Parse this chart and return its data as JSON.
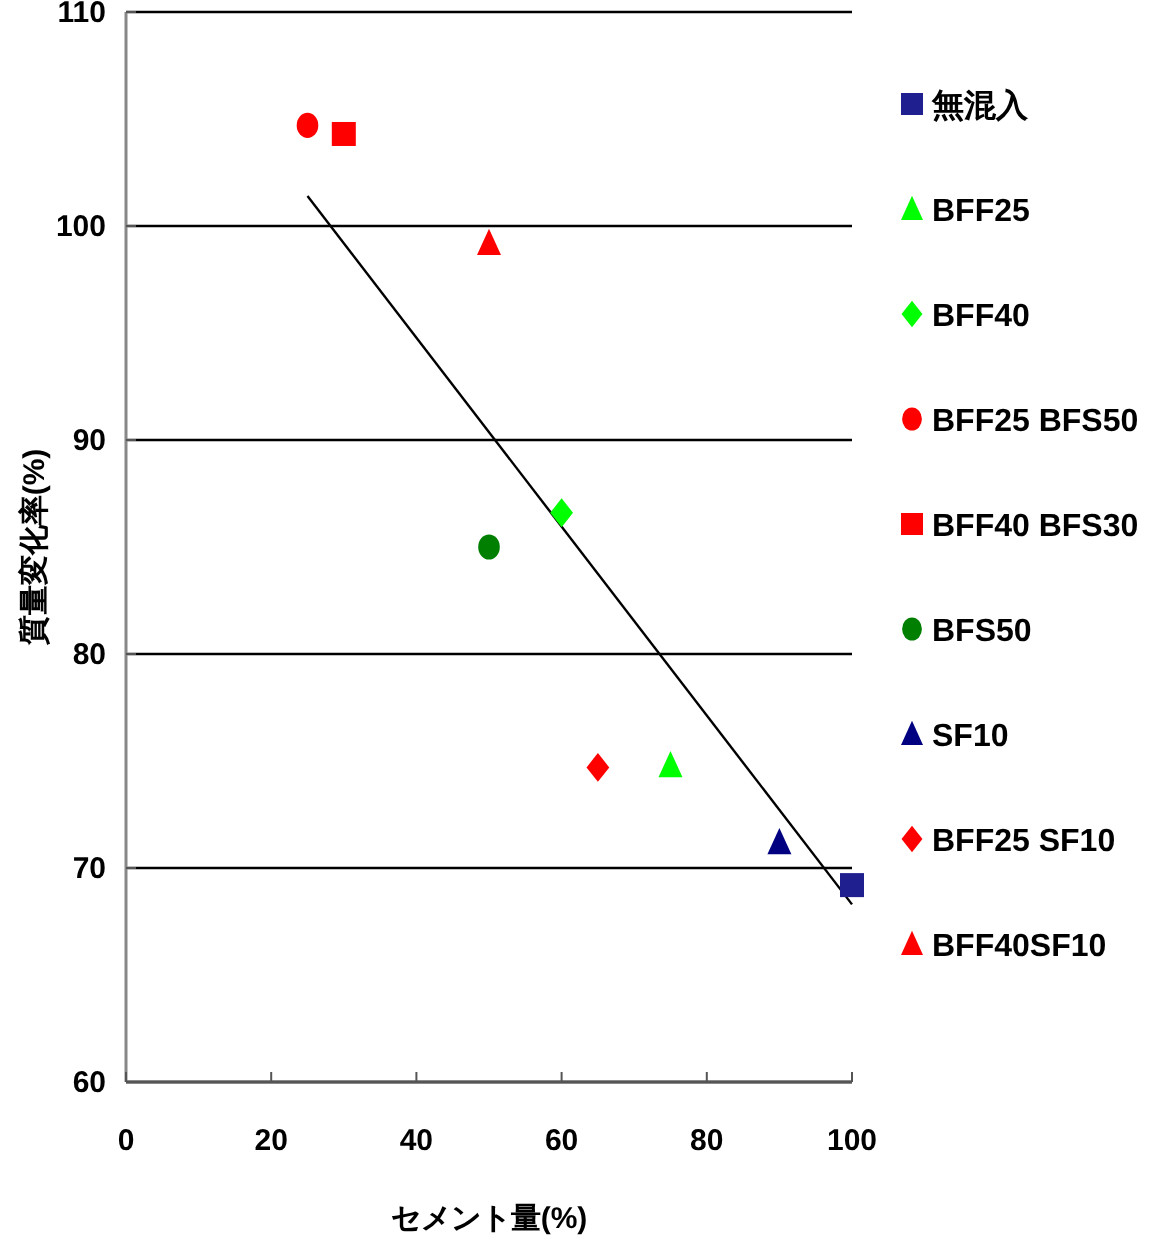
{
  "chart_data": {
    "type": "scatter",
    "xlabel": "セメント量(%)",
    "ylabel": "質量変化率(%)",
    "xlim": [
      0,
      100
    ],
    "xticks": [
      0,
      20,
      40,
      60,
      80,
      100
    ],
    "ylim": [
      60,
      110
    ],
    "yticks": [
      60,
      70,
      80,
      90,
      100,
      110
    ],
    "grid": "y",
    "legend": "right",
    "series": [
      {
        "name": "無混入",
        "color": "#1f1f8f",
        "marker": "square",
        "x": [
          100
        ],
        "values": [
          69.2
        ]
      },
      {
        "name": "BFF25",
        "color": "#00ff00",
        "marker": "triangle",
        "x": [
          75
        ],
        "values": [
          74.8
        ]
      },
      {
        "name": "BFF40",
        "color": "#00ff00",
        "marker": "diamond",
        "x": [
          60
        ],
        "values": [
          86.6
        ]
      },
      {
        "name": "BFF25 BFS50",
        "color": "#ff0000",
        "marker": "circle",
        "x": [
          25
        ],
        "values": [
          104.7
        ]
      },
      {
        "name": "BFF40 BFS30",
        "color": "#ff0000",
        "marker": "square",
        "x": [
          30
        ],
        "values": [
          104.3
        ]
      },
      {
        "name": "BFS50",
        "color": "#007f00",
        "marker": "circle",
        "x": [
          50
        ],
        "values": [
          85.0
        ]
      },
      {
        "name": "SF10",
        "color": "#000080",
        "marker": "triangle",
        "x": [
          90
        ],
        "values": [
          71.2
        ]
      },
      {
        "name": "BFF25 SF10",
        "color": "#ff0000",
        "marker": "diamond",
        "x": [
          65
        ],
        "values": [
          74.7
        ]
      },
      {
        "name": "BFF40SF10",
        "color": "#ff0000",
        "marker": "triangle",
        "x": [
          50
        ],
        "values": [
          99.2
        ]
      },
      {
        "type": "line",
        "color": "#000000",
        "x": [
          25,
          100
        ],
        "values": [
          101.4,
          68.3
        ]
      }
    ]
  }
}
